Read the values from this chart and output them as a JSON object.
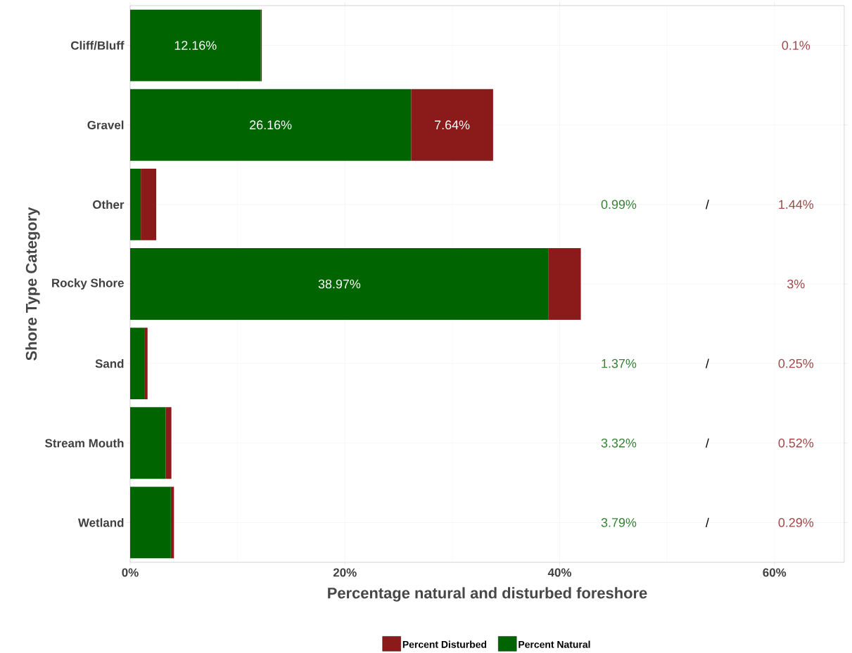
{
  "chart_data": {
    "type": "bar",
    "orientation": "horizontal",
    "stacked": true,
    "xlabel": "Percentage natural and disturbed foreshore",
    "ylabel": "Shore Type Category",
    "categories": [
      "Cliff/Bluff",
      "Gravel",
      "Other",
      "Rocky Shore",
      "Sand",
      "Stream Mouth",
      "Wetland"
    ],
    "series": [
      {
        "name": "Percent Natural",
        "color": "#006400",
        "values": [
          12.16,
          26.16,
          0.99,
          38.97,
          1.37,
          3.32,
          3.79
        ],
        "value_labels": [
          "12.16%",
          "26.16%",
          null,
          "38.97%",
          null,
          null,
          null
        ]
      },
      {
        "name": "Percent Disturbed",
        "color": "#8b1a1a",
        "values": [
          0.1,
          7.64,
          1.44,
          3,
          0.25,
          0.52,
          0.29
        ],
        "value_labels": [
          null,
          "7.64%",
          null,
          null,
          null,
          null,
          null
        ]
      }
    ],
    "xlim": [
      0,
      66.5
    ],
    "xticks": [
      {
        "value": 0,
        "label": "0%"
      },
      {
        "value": 20,
        "label": "20%"
      },
      {
        "value": 40,
        "label": "40%"
      },
      {
        "value": 60,
        "label": "60%"
      }
    ],
    "annotations": [
      "0.1%",
      "0.99%",
      "/",
      "1.44%",
      "3%",
      "1.37%",
      "/",
      "0.25%",
      "3.32%",
      "/",
      "0.52%",
      "3.79%",
      "/",
      "0.29%"
    ],
    "grid": true,
    "legend": "bottom"
  }
}
